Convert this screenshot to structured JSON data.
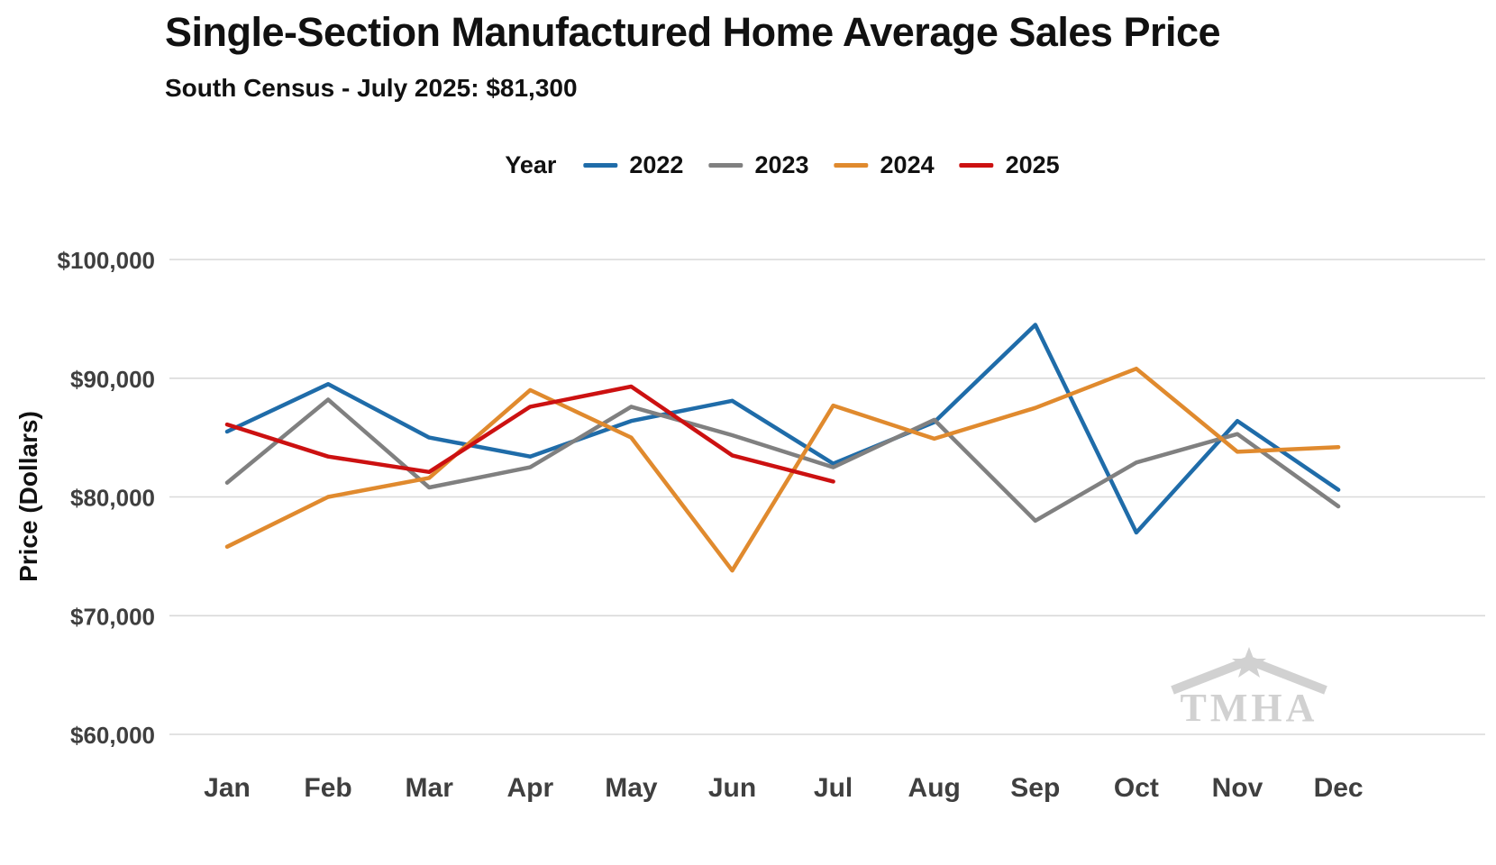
{
  "title": "Single-Section Manufactured Home Average Sales Price",
  "subtitle": "South Census - July 2025: $81,300",
  "ylabel": "Price (Dollars)",
  "watermark": "TMHA",
  "legend": {
    "label": "Year",
    "position": "top",
    "items": [
      {
        "label": "2022",
        "color": "#1F6CA9"
      },
      {
        "label": "2023",
        "color": "#808080"
      },
      {
        "label": "2024",
        "color": "#E08A2E"
      },
      {
        "label": "2025",
        "color": "#CC1111"
      }
    ]
  },
  "chart_data": {
    "type": "line",
    "title": "Single-Section Manufactured Home Average Sales Price",
    "subtitle": "South Census - July 2025: $81,300",
    "xlabel": "",
    "ylabel": "Price (Dollars)",
    "categories": [
      "Jan",
      "Feb",
      "Mar",
      "Apr",
      "May",
      "Jun",
      "Jul",
      "Aug",
      "Sep",
      "Oct",
      "Nov",
      "Dec"
    ],
    "series": [
      {
        "name": "2022",
        "color": "#1F6CA9",
        "values": [
          85500,
          89500,
          85000,
          83400,
          86400,
          88100,
          82800,
          86300,
          94500,
          77000,
          86400,
          80600
        ]
      },
      {
        "name": "2023",
        "color": "#808080",
        "values": [
          81200,
          88200,
          80800,
          82500,
          87600,
          85200,
          82500,
          86500,
          78000,
          82900,
          85300,
          79200
        ]
      },
      {
        "name": "2024",
        "color": "#E08A2E",
        "values": [
          75800,
          80000,
          81600,
          89000,
          85000,
          73800,
          87700,
          84900,
          87500,
          90800,
          83800,
          84200
        ]
      },
      {
        "name": "2025",
        "color": "#CC1111",
        "values": [
          86100,
          83400,
          82100,
          87600,
          89300,
          83500,
          81300
        ]
      }
    ],
    "ylim": [
      60000,
      100000
    ],
    "yticks": [
      60000,
      70000,
      80000,
      90000,
      100000
    ],
    "ytick_labels": [
      "$60,000",
      "$70,000",
      "$80,000",
      "$90,000",
      "$100,000"
    ],
    "grid": true,
    "legend_position": "top"
  }
}
